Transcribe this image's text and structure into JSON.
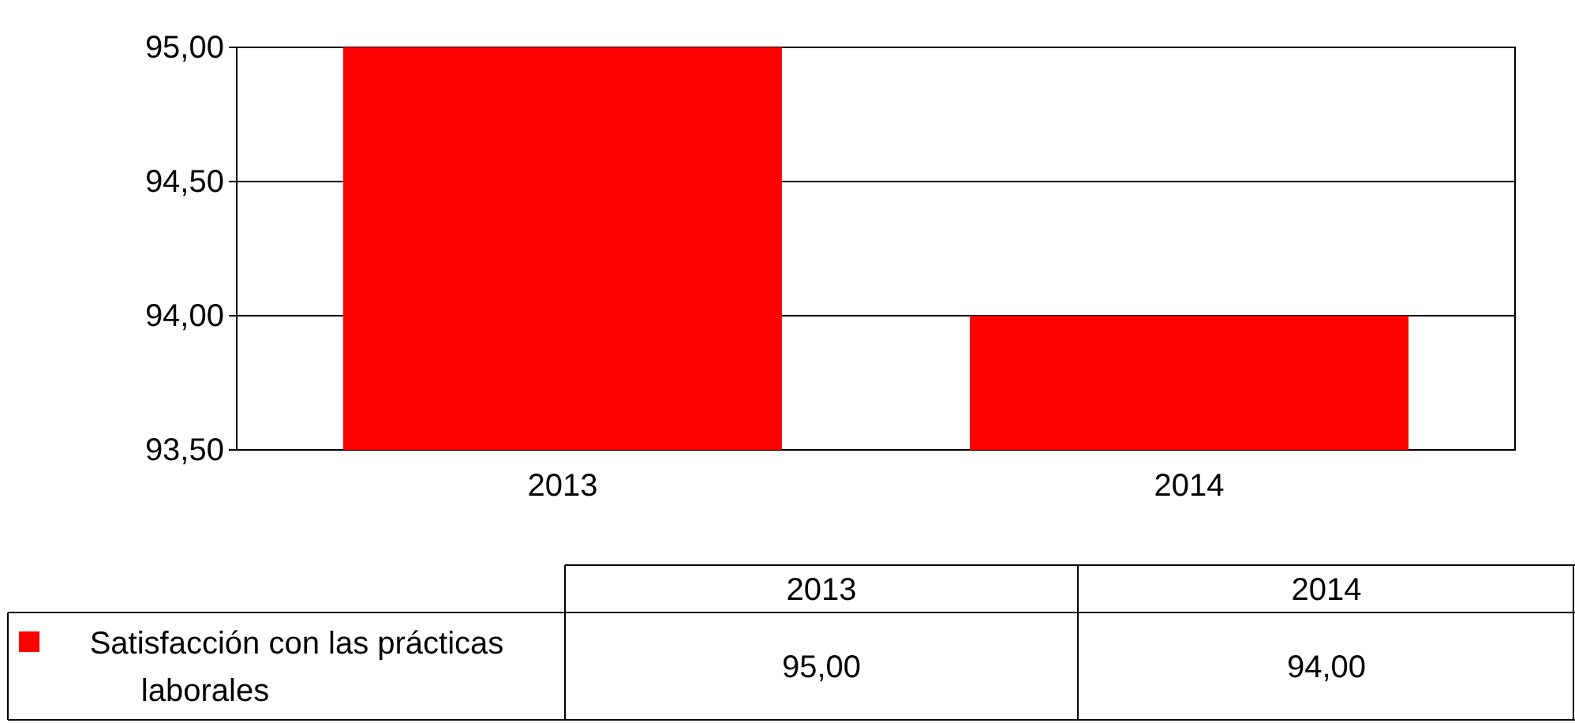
{
  "chart_data": {
    "type": "bar",
    "categories": [
      "2013",
      "2014"
    ],
    "series": [
      {
        "name": "Satisfacción con las prácticas laborales",
        "color": "#ff0000",
        "values": [
          95.0,
          94.0
        ],
        "value_labels": [
          "95,00",
          "94,00"
        ]
      }
    ],
    "ylim": [
      93.5,
      95.0
    ],
    "yticks": [
      {
        "value": 93.5,
        "label": "93,50"
      },
      {
        "value": 94.0,
        "label": "94,00"
      },
      {
        "value": 94.5,
        "label": "94,50"
      },
      {
        "value": 95.0,
        "label": "95,00"
      }
    ],
    "grid": "y",
    "legend": "bottom"
  }
}
